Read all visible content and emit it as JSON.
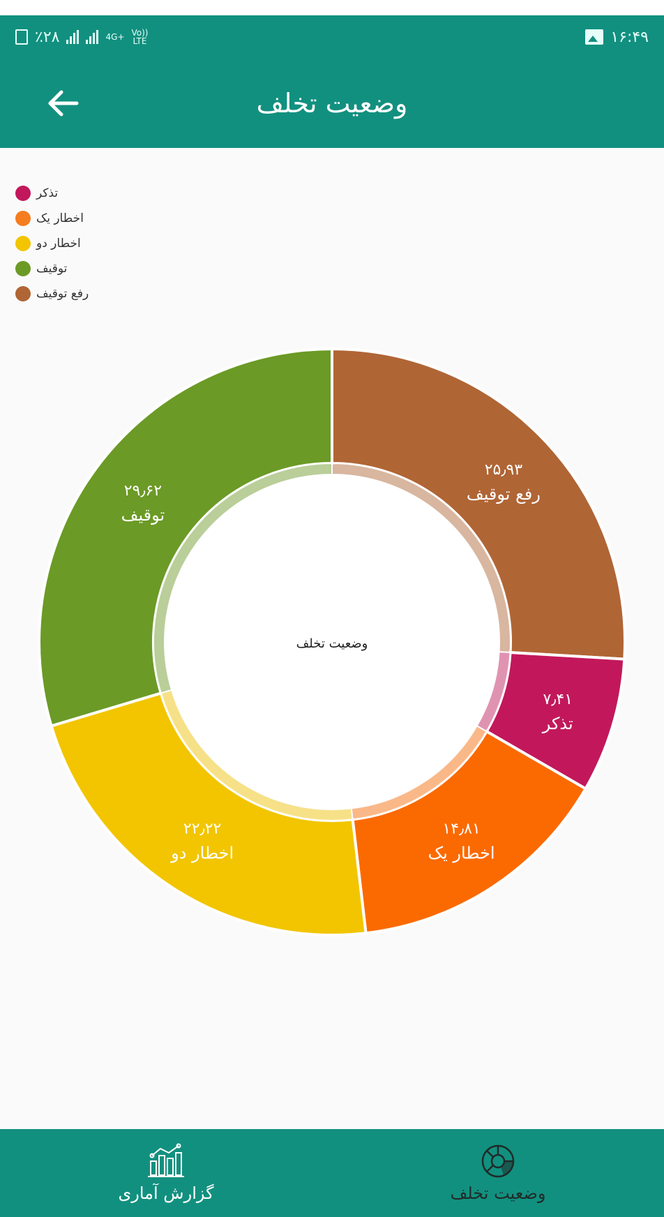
{
  "status_bar": {
    "battery": "٪۲۸",
    "network_top": "4G+",
    "volte_top": "Vo))",
    "volte_bottom": "LTE",
    "time": "۱۶:۴۹"
  },
  "app_bar": {
    "title": "وضعیت تخلف",
    "back_icon": "arrow-left-icon"
  },
  "legend": [
    {
      "label": "تذکر",
      "color": "#c2185b"
    },
    {
      "label": "اخطار یک",
      "color": "#f57c1f"
    },
    {
      "label": "اخطار دو",
      "color": "#f2c500"
    },
    {
      "label": "توقیف",
      "color": "#6b9a26"
    },
    {
      "label": "رفع توقیف",
      "color": "#b06535"
    }
  ],
  "chart_data": {
    "type": "pie",
    "title": "",
    "center_label": "وضعیت تخلف",
    "slices": [
      {
        "label": "رفع توقیف",
        "value": 25.93,
        "value_label": "۲۵٫۹۳",
        "color": "#b06535"
      },
      {
        "label": "تذکر",
        "value": 7.41,
        "value_label": "۷٫۴۱",
        "color": "#c2185b"
      },
      {
        "label": "اخطار یک",
        "value": 14.81,
        "value_label": "۱۴٫۸۱",
        "color": "#fb6a00"
      },
      {
        "label": "اخطار دو",
        "value": 22.22,
        "value_label": "۲۲٫۲۲",
        "color": "#f2c500"
      },
      {
        "label": "توقیف",
        "value": 29.62,
        "value_label": "۲۹٫۶۲",
        "color": "#6b9a26"
      }
    ],
    "legend_position": "top-left",
    "donut": true
  },
  "bottom_nav": {
    "items": [
      {
        "label": "گزارش آماری",
        "icon": "bar-chart-icon",
        "active": false
      },
      {
        "label": "وضعیت تخلف",
        "icon": "pie-chart-icon",
        "active": true
      }
    ]
  },
  "colors": {
    "primary": "#12907f",
    "background": "#fafafa"
  }
}
